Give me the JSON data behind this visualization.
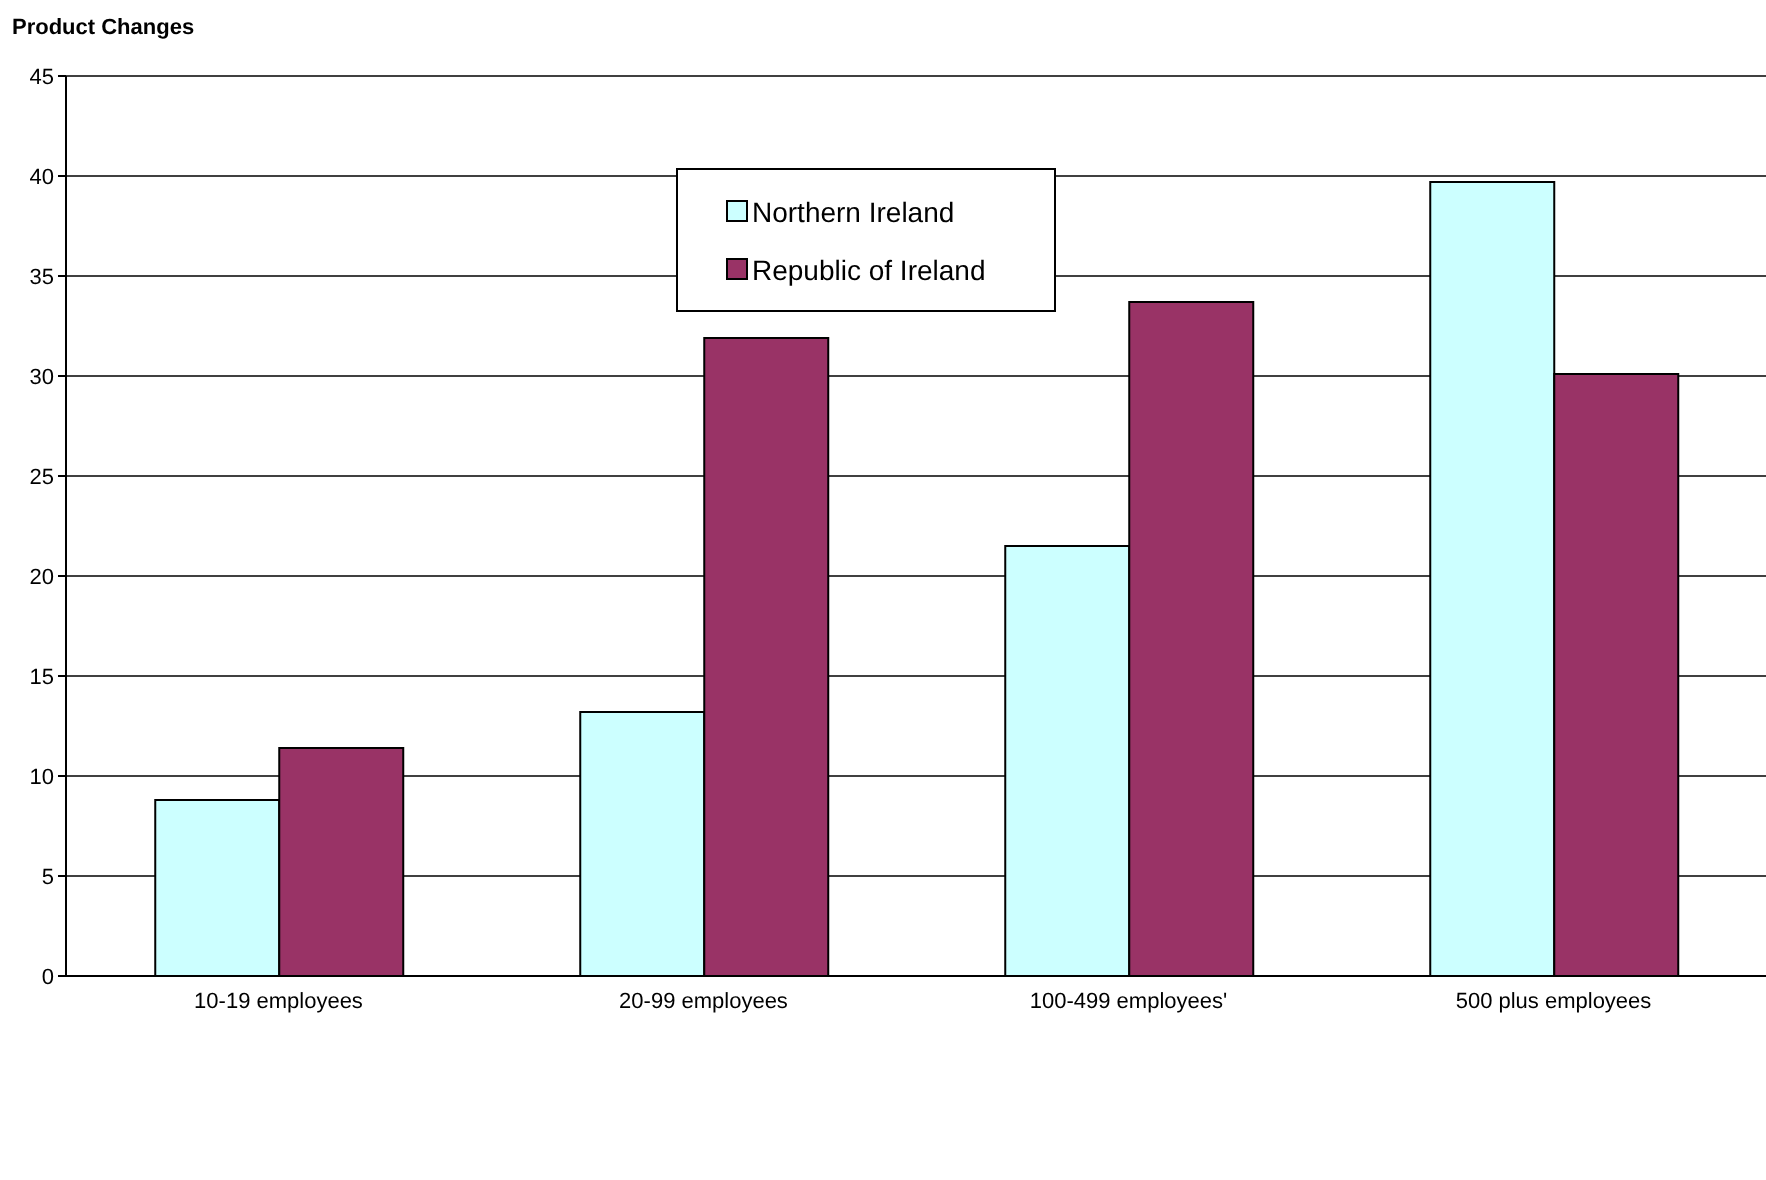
{
  "chart_data": {
    "type": "bar",
    "title": "Product Changes",
    "categories": [
      "10-19 employees",
      "20-99 employees",
      "100-499 employees'",
      "500 plus employees"
    ],
    "series": [
      {
        "name": "Northern Ireland",
        "color": "#ccffff",
        "values": [
          8.8,
          13.2,
          21.5,
          39.7
        ]
      },
      {
        "name": "Republic of Ireland",
        "color": "#993366",
        "values": [
          11.4,
          31.9,
          33.7,
          30.1
        ]
      }
    ],
    "ylim": [
      0,
      45
    ],
    "yticks": [
      0,
      5,
      10,
      15,
      20,
      25,
      30,
      35,
      40,
      45
    ],
    "grid": "y",
    "legend": "top"
  }
}
